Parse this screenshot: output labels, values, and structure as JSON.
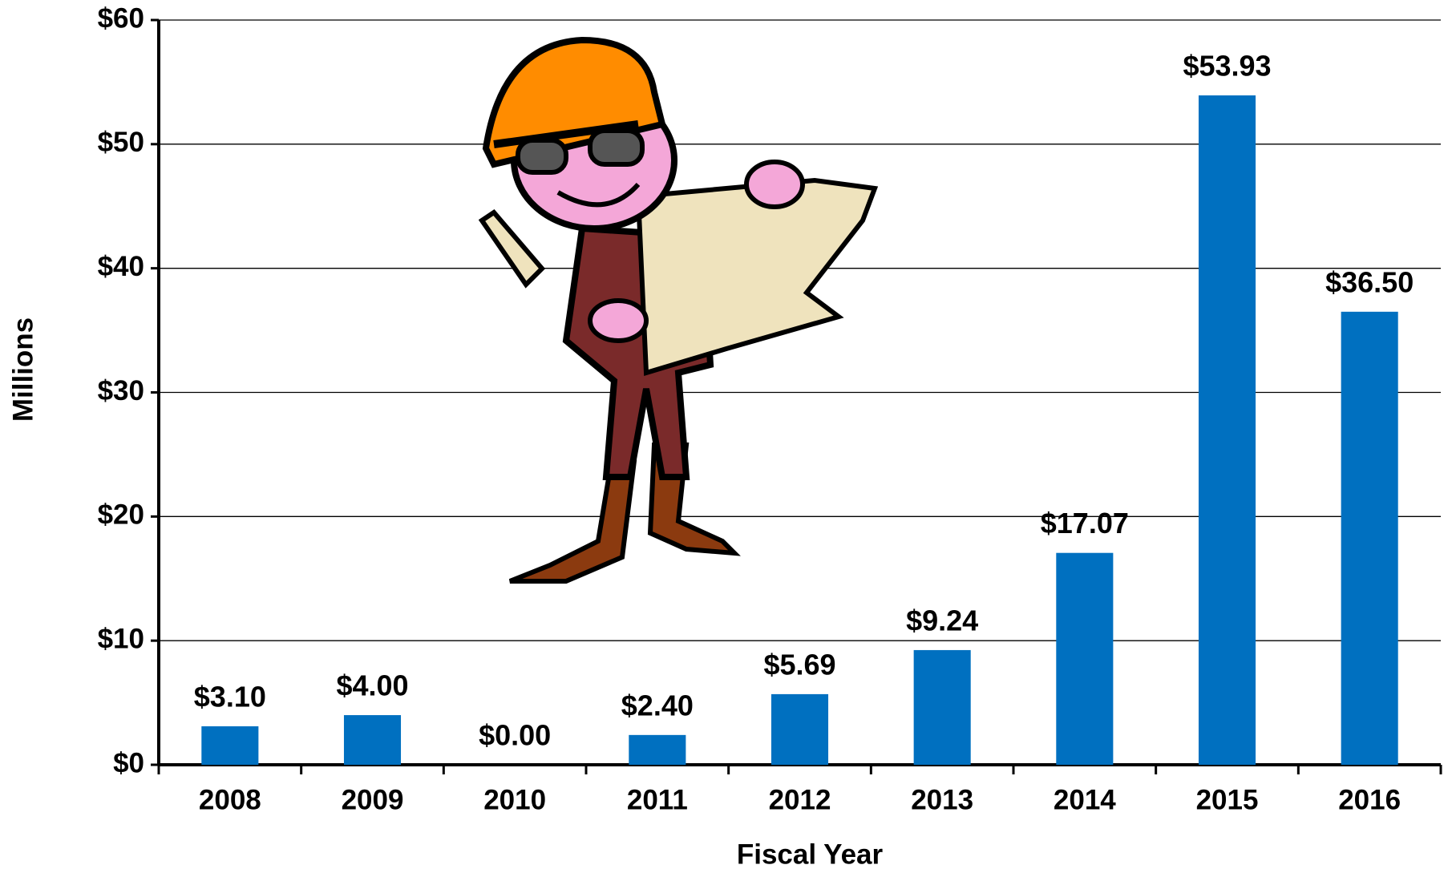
{
  "chart_data": {
    "type": "bar",
    "x_label": "Fiscal Year",
    "y_label": "Millions",
    "categories": [
      "2008",
      "2009",
      "2010",
      "2011",
      "2012",
      "2013",
      "2014",
      "2015",
      "2016"
    ],
    "values": [
      3.1,
      4.0,
      0.0,
      2.4,
      5.69,
      9.24,
      17.07,
      53.93,
      36.5
    ],
    "value_labels": [
      "$3.10",
      "$4.00",
      "$0.00",
      "$2.40",
      "$5.69",
      "$9.24",
      "$17.07",
      "$53.93",
      "$36.50"
    ],
    "color": "#0070c0",
    "ylim": [
      0,
      60
    ],
    "yticks": [
      {
        "value": 0,
        "label": "$0"
      },
      {
        "value": 10,
        "label": "$10"
      },
      {
        "value": 20,
        "label": "$20"
      },
      {
        "value": 30,
        "label": "$30"
      },
      {
        "value": 40,
        "label": "$40"
      },
      {
        "value": 50,
        "label": "$50"
      },
      {
        "value": 60,
        "label": "$60"
      }
    ],
    "grid": true
  }
}
